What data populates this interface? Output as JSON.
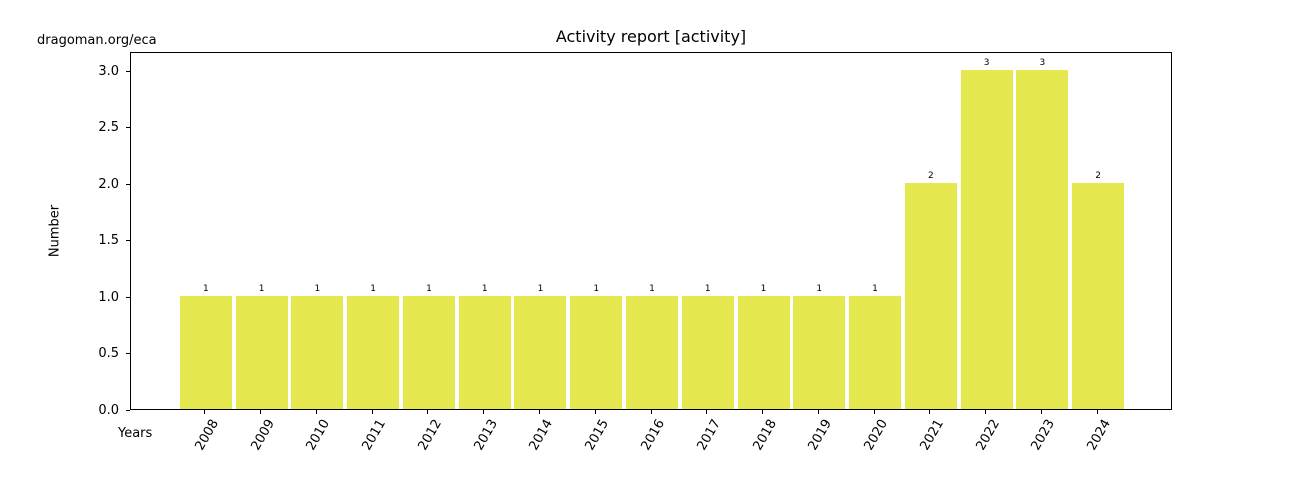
{
  "figure": {
    "watermark": "dragoman.org/eca"
  },
  "chart_data": {
    "type": "bar",
    "title": "Activity report [activity]",
    "xlabel": "Years",
    "ylabel": "Number",
    "categories": [
      "2008",
      "2009",
      "2010",
      "2011",
      "2012",
      "2013",
      "2014",
      "2015",
      "2016",
      "2017",
      "2018",
      "2019",
      "2020",
      "2021",
      "2022",
      "2023",
      "2024"
    ],
    "values": [
      1,
      1,
      1,
      1,
      1,
      1,
      1,
      1,
      1,
      1,
      1,
      1,
      1,
      2,
      3,
      3,
      2
    ],
    "bar_value_labels": [
      "1",
      "1",
      "1",
      "1",
      "1",
      "1",
      "1",
      "1",
      "1",
      "1",
      "1",
      "1",
      "1",
      "2",
      "3",
      "3",
      "2"
    ],
    "ytick_labels": [
      "0.0",
      "0.5",
      "1.0",
      "1.5",
      "2.0",
      "2.5",
      "3.0"
    ],
    "ytick_values": [
      0,
      0.5,
      1,
      1.5,
      2,
      2.5,
      3
    ],
    "ylim": [
      0,
      3.17
    ],
    "bar_color": "#e5e94f",
    "axis_color": "#000000",
    "background_color": "#ffffff",
    "grid": false,
    "legend": null,
    "xtick_rotation_deg": 60
  }
}
